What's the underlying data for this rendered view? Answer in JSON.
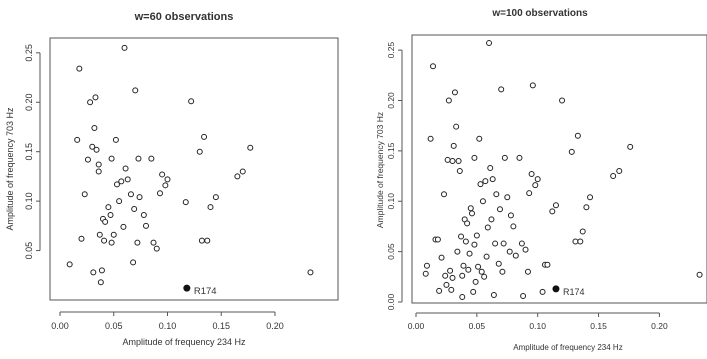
{
  "chart_data": [
    {
      "type": "scatter",
      "title": "w=60 observations",
      "xlabel": "Amplitude of frequency 234 Hz",
      "ylabel": "Amplitude of frequency 703 Hz",
      "xlim": [
        0,
        0.24
      ],
      "ylim": [
        0,
        0.265
      ],
      "xticks": [
        "0.00",
        "0.05",
        "0.10",
        "0.15",
        "0.20"
      ],
      "yticks": [
        "0.05",
        "0.10",
        "0.15",
        "0.20",
        "0.25"
      ],
      "grid": false,
      "points": [
        [
          0.009,
          0.036
        ],
        [
          0.016,
          0.162
        ],
        [
          0.018,
          0.234
        ],
        [
          0.02,
          0.062
        ],
        [
          0.023,
          0.107
        ],
        [
          0.026,
          0.142
        ],
        [
          0.028,
          0.2
        ],
        [
          0.03,
          0.155
        ],
        [
          0.031,
          0.028
        ],
        [
          0.032,
          0.174
        ],
        [
          0.033,
          0.205
        ],
        [
          0.034,
          0.152
        ],
        [
          0.036,
          0.137
        ],
        [
          0.036,
          0.13
        ],
        [
          0.037,
          0.066
        ],
        [
          0.038,
          0.018
        ],
        [
          0.039,
          0.03
        ],
        [
          0.04,
          0.082
        ],
        [
          0.041,
          0.06
        ],
        [
          0.042,
          0.079
        ],
        [
          0.045,
          0.094
        ],
        [
          0.047,
          0.086
        ],
        [
          0.048,
          0.058
        ],
        [
          0.048,
          0.143
        ],
        [
          0.05,
          0.066
        ],
        [
          0.052,
          0.162
        ],
        [
          0.053,
          0.117
        ],
        [
          0.055,
          0.1
        ],
        [
          0.057,
          0.12
        ],
        [
          0.059,
          0.074
        ],
        [
          0.06,
          0.255
        ],
        [
          0.061,
          0.133
        ],
        [
          0.063,
          0.122
        ],
        [
          0.066,
          0.107
        ],
        [
          0.068,
          0.038
        ],
        [
          0.069,
          0.092
        ],
        [
          0.07,
          0.212
        ],
        [
          0.072,
          0.058
        ],
        [
          0.073,
          0.143
        ],
        [
          0.074,
          0.104
        ],
        [
          0.078,
          0.086
        ],
        [
          0.08,
          0.075
        ],
        [
          0.085,
          0.143
        ],
        [
          0.087,
          0.058
        ],
        [
          0.09,
          0.052
        ],
        [
          0.093,
          0.108
        ],
        [
          0.095,
          0.127
        ],
        [
          0.098,
          0.116
        ],
        [
          0.1,
          0.122
        ],
        [
          0.117,
          0.099
        ],
        [
          0.122,
          0.201
        ],
        [
          0.13,
          0.15
        ],
        [
          0.132,
          0.06
        ],
        [
          0.134,
          0.165
        ],
        [
          0.137,
          0.06
        ],
        [
          0.14,
          0.094
        ],
        [
          0.145,
          0.104
        ],
        [
          0.165,
          0.125
        ],
        [
          0.17,
          0.13
        ],
        [
          0.177,
          0.154
        ],
        [
          0.233,
          0.028
        ]
      ],
      "highlight": {
        "label": "R174",
        "point": [
          0.118,
          0.012
        ]
      }
    },
    {
      "type": "scatter",
      "title": "w=100 observations",
      "xlabel": "Amplitude of frequency 234 Hz",
      "ylabel": "Amplitude of frequency 703 Hz",
      "xlim": [
        0,
        0.235
      ],
      "ylim": [
        0,
        0.265
      ],
      "xticks": [
        "0.00",
        "0.05",
        "0.10",
        "0.15",
        "0.20"
      ],
      "yticks": [
        "0.00",
        "0.05",
        "0.10",
        "0.15",
        "0.20",
        "0.25"
      ],
      "grid": false,
      "points": [
        [
          0.008,
          0.028
        ],
        [
          0.009,
          0.036
        ],
        [
          0.012,
          0.162
        ],
        [
          0.014,
          0.234
        ],
        [
          0.016,
          0.062
        ],
        [
          0.018,
          0.062
        ],
        [
          0.019,
          0.011
        ],
        [
          0.021,
          0.044
        ],
        [
          0.023,
          0.107
        ],
        [
          0.024,
          0.026
        ],
        [
          0.025,
          0.017
        ],
        [
          0.026,
          0.141
        ],
        [
          0.027,
          0.2
        ],
        [
          0.028,
          0.031
        ],
        [
          0.029,
          0.012
        ],
        [
          0.03,
          0.024
        ],
        [
          0.03,
          0.14
        ],
        [
          0.031,
          0.155
        ],
        [
          0.032,
          0.208
        ],
        [
          0.033,
          0.174
        ],
        [
          0.034,
          0.05
        ],
        [
          0.035,
          0.14
        ],
        [
          0.036,
          0.13
        ],
        [
          0.037,
          0.065
        ],
        [
          0.038,
          0.026
        ],
        [
          0.038,
          0.005
        ],
        [
          0.039,
          0.036
        ],
        [
          0.04,
          0.082
        ],
        [
          0.041,
          0.06
        ],
        [
          0.042,
          0.078
        ],
        [
          0.043,
          0.032
        ],
        [
          0.044,
          0.048
        ],
        [
          0.045,
          0.093
        ],
        [
          0.046,
          0.088
        ],
        [
          0.047,
          0.01
        ],
        [
          0.048,
          0.057
        ],
        [
          0.048,
          0.143
        ],
        [
          0.049,
          0.02
        ],
        [
          0.05,
          0.066
        ],
        [
          0.051,
          0.035
        ],
        [
          0.052,
          0.162
        ],
        [
          0.053,
          0.117
        ],
        [
          0.054,
          0.03
        ],
        [
          0.055,
          0.1
        ],
        [
          0.056,
          0.025
        ],
        [
          0.057,
          0.12
        ],
        [
          0.058,
          0.045
        ],
        [
          0.059,
          0.074
        ],
        [
          0.06,
          0.257
        ],
        [
          0.061,
          0.133
        ],
        [
          0.062,
          0.082
        ],
        [
          0.063,
          0.122
        ],
        [
          0.064,
          0.007
        ],
        [
          0.065,
          0.058
        ],
        [
          0.066,
          0.107
        ],
        [
          0.068,
          0.038
        ],
        [
          0.069,
          0.092
        ],
        [
          0.07,
          0.211
        ],
        [
          0.071,
          0.03
        ],
        [
          0.072,
          0.058
        ],
        [
          0.073,
          0.143
        ],
        [
          0.075,
          0.104
        ],
        [
          0.077,
          0.05
        ],
        [
          0.078,
          0.086
        ],
        [
          0.08,
          0.075
        ],
        [
          0.082,
          0.046
        ],
        [
          0.085,
          0.143
        ],
        [
          0.087,
          0.058
        ],
        [
          0.088,
          0.006
        ],
        [
          0.09,
          0.052
        ],
        [
          0.092,
          0.03
        ],
        [
          0.093,
          0.108
        ],
        [
          0.095,
          0.127
        ],
        [
          0.096,
          0.215
        ],
        [
          0.098,
          0.116
        ],
        [
          0.1,
          0.122
        ],
        [
          0.104,
          0.01
        ],
        [
          0.106,
          0.037
        ],
        [
          0.108,
          0.037
        ],
        [
          0.112,
          0.09
        ],
        [
          0.115,
          0.096
        ],
        [
          0.12,
          0.2
        ],
        [
          0.128,
          0.149
        ],
        [
          0.131,
          0.06
        ],
        [
          0.133,
          0.165
        ],
        [
          0.135,
          0.06
        ],
        [
          0.137,
          0.07
        ],
        [
          0.14,
          0.094
        ],
        [
          0.143,
          0.104
        ],
        [
          0.162,
          0.125
        ],
        [
          0.167,
          0.13
        ],
        [
          0.176,
          0.154
        ],
        [
          0.233,
          0.027
        ]
      ],
      "highlight": {
        "label": "R174",
        "point": [
          0.115,
          0.013
        ]
      }
    }
  ]
}
